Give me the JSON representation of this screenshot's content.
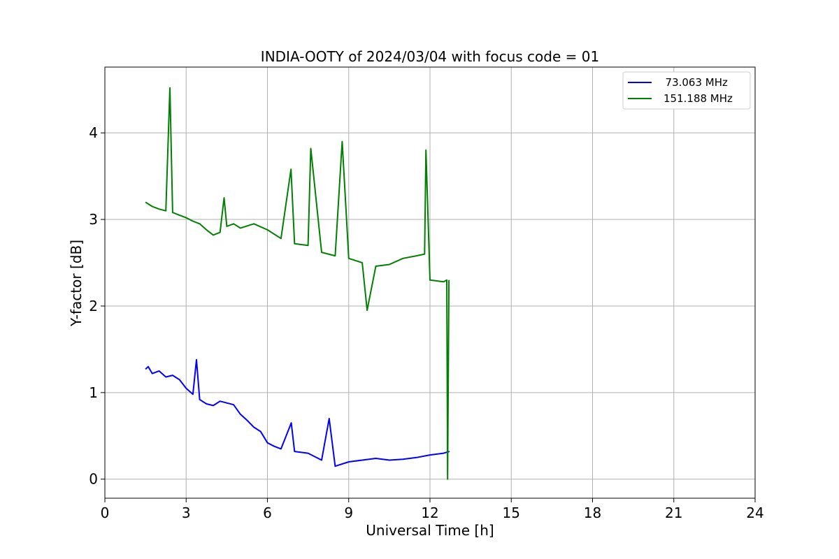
{
  "chart_data": {
    "type": "line",
    "title": "INDIA-OOTY of 2024/03/04 with focus code = 01",
    "xlabel": "Universal Time [h]",
    "ylabel": "Y-factor [dB]",
    "xlim": [
      0,
      24
    ],
    "ylim": [
      -0.22,
      4.76
    ],
    "xticks": [
      0,
      3,
      6,
      9,
      12,
      15,
      18,
      21,
      24
    ],
    "yticks": [
      0,
      1,
      2,
      3,
      4
    ],
    "grid": true,
    "legend_position": "upper-right",
    "series": [
      {
        "name": "  73.063 MHz",
        "color": "#0000ff",
        "x": [
          1.5,
          1.6,
          1.75,
          2.0,
          2.25,
          2.5,
          2.75,
          3.0,
          3.25,
          3.38,
          3.5,
          3.75,
          4.0,
          4.25,
          4.5,
          4.75,
          5.0,
          5.25,
          5.5,
          5.75,
          6.0,
          6.25,
          6.5,
          6.88,
          7.0,
          7.5,
          8.0,
          8.28,
          8.5,
          9.0,
          9.5,
          10.0,
          10.5,
          11.0,
          11.5,
          12.0,
          12.5,
          12.72
        ],
        "y": [
          1.27,
          1.3,
          1.22,
          1.25,
          1.18,
          1.2,
          1.15,
          1.05,
          0.98,
          1.38,
          0.92,
          0.87,
          0.85,
          0.9,
          0.88,
          0.86,
          0.75,
          0.68,
          0.6,
          0.55,
          0.42,
          0.38,
          0.35,
          0.65,
          0.32,
          0.3,
          0.22,
          0.7,
          0.15,
          0.2,
          0.22,
          0.24,
          0.22,
          0.23,
          0.25,
          0.28,
          0.3,
          0.32
        ]
      },
      {
        "name": "151.188 MHz",
        "color": "#008000",
        "x": [
          1.5,
          1.75,
          2.0,
          2.25,
          2.4,
          2.5,
          2.75,
          3.0,
          3.25,
          3.5,
          3.75,
          4.0,
          4.25,
          4.4,
          4.5,
          4.75,
          5.0,
          5.5,
          6.0,
          6.5,
          6.87,
          7.0,
          7.5,
          7.6,
          8.0,
          8.5,
          8.76,
          9.0,
          9.5,
          9.68,
          10.0,
          10.5,
          11.0,
          11.5,
          11.8,
          11.85,
          12.0,
          12.5,
          12.62,
          12.65,
          12.7
        ],
        "y": [
          3.2,
          3.15,
          3.12,
          3.1,
          4.52,
          3.08,
          3.05,
          3.02,
          2.98,
          2.95,
          2.88,
          2.82,
          2.85,
          3.25,
          2.92,
          2.95,
          2.9,
          2.95,
          2.88,
          2.78,
          3.58,
          2.72,
          2.7,
          3.82,
          2.62,
          2.58,
          3.9,
          2.55,
          2.5,
          1.95,
          2.46,
          2.48,
          2.55,
          2.58,
          2.6,
          3.8,
          2.3,
          2.28,
          2.3,
          0.0,
          2.3
        ]
      }
    ]
  }
}
